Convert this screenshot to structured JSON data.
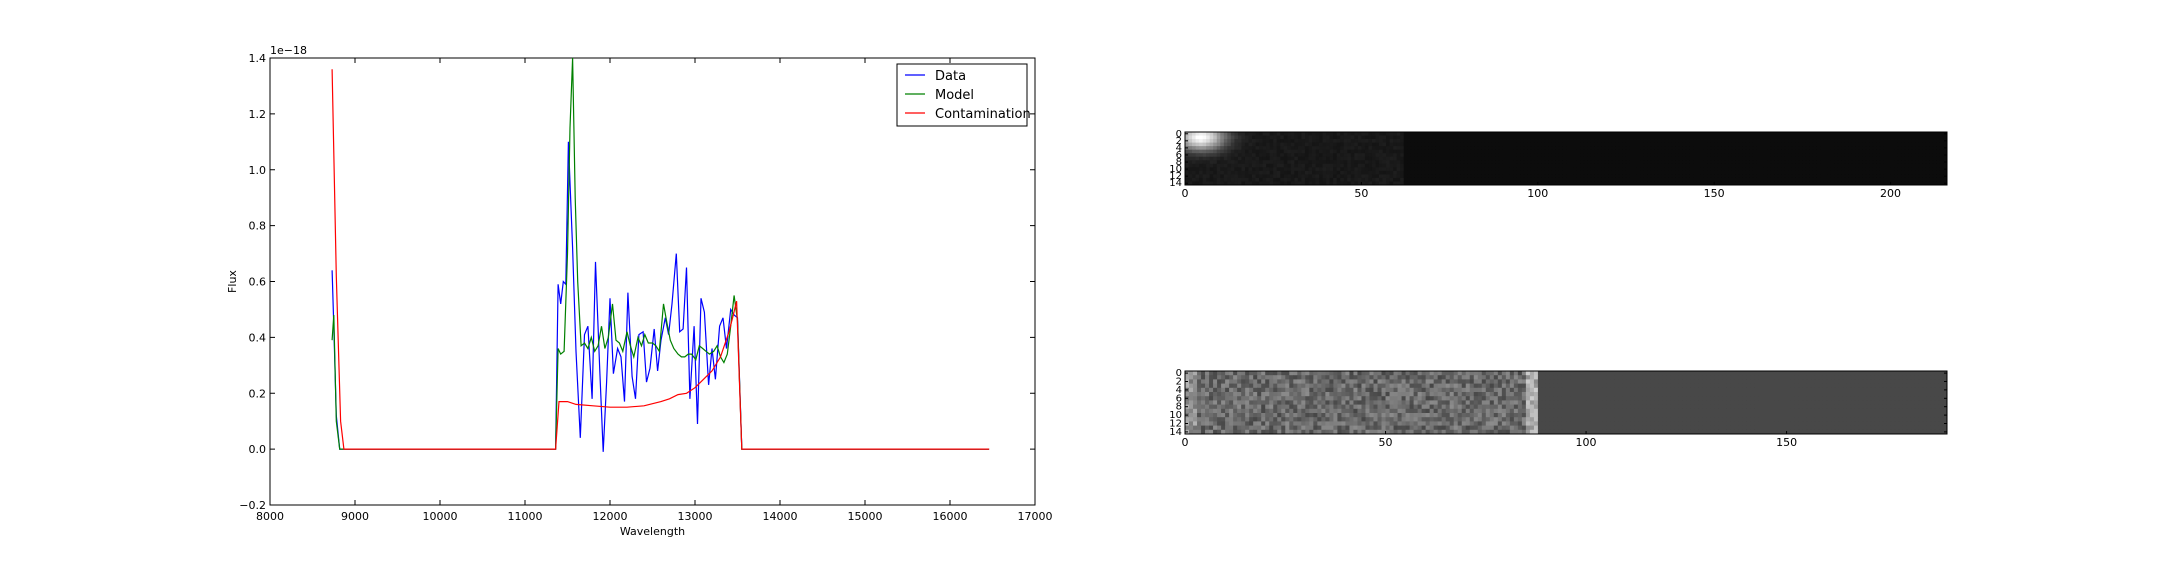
{
  "chart_data": [
    {
      "type": "line",
      "xlabel": "Wavelength",
      "ylabel": "Flux",
      "offset_text": "1e−18",
      "xlim": [
        8000,
        17000
      ],
      "ylim": [
        -0.2,
        1.4
      ],
      "xticks": [
        8000,
        9000,
        10000,
        11000,
        12000,
        13000,
        14000,
        15000,
        16000,
        17000
      ],
      "yticks": [
        -0.2,
        0.0,
        0.2,
        0.4,
        0.6,
        0.8,
        1.0,
        1.2,
        1.4
      ],
      "ytick_labels": [
        "−0.2",
        "0.0",
        "0.2",
        "0.4",
        "0.6",
        "0.8",
        "1.0",
        "1.2",
        "1.4"
      ],
      "legend_position": "upper right",
      "series": [
        {
          "name": "Data",
          "color": "#0000ff",
          "x": [
            8730,
            8750,
            8780,
            8820,
            8860,
            9000,
            10000,
            11000,
            11360,
            11390,
            11420,
            11450,
            11480,
            11510,
            11560,
            11600,
            11650,
            11700,
            11740,
            11790,
            11830,
            11880,
            11920,
            11960,
            12000,
            12040,
            12090,
            12130,
            12170,
            12210,
            12260,
            12300,
            12340,
            12390,
            12430,
            12470,
            12520,
            12560,
            12600,
            12650,
            12690,
            12730,
            12780,
            12820,
            12860,
            12900,
            12940,
            12990,
            13030,
            13070,
            13110,
            13160,
            13200,
            13240,
            13290,
            13330,
            13370,
            13420,
            13460,
            13500,
            13550,
            14000,
            15000,
            16000,
            16460
          ],
          "y": [
            0.64,
            0.44,
            0.12,
            0.0,
            0.0,
            0.0,
            0.0,
            0.0,
            0.0,
            0.59,
            0.52,
            0.6,
            0.59,
            1.1,
            0.72,
            0.35,
            0.04,
            0.41,
            0.44,
            0.18,
            0.67,
            0.28,
            -0.01,
            0.24,
            0.54,
            0.27,
            0.36,
            0.33,
            0.17,
            0.56,
            0.26,
            0.18,
            0.41,
            0.42,
            0.24,
            0.29,
            0.43,
            0.28,
            0.39,
            0.47,
            0.41,
            0.52,
            0.7,
            0.42,
            0.43,
            0.65,
            0.18,
            0.44,
            0.09,
            0.54,
            0.49,
            0.23,
            0.36,
            0.25,
            0.44,
            0.47,
            0.36,
            0.5,
            0.48,
            0.47,
            0.0,
            0.0,
            0.0,
            0.0,
            0.0
          ]
        },
        {
          "name": "Model",
          "color": "#008000",
          "x": [
            8730,
            8750,
            8780,
            8820,
            8860,
            9000,
            10000,
            11000,
            11360,
            11390,
            11420,
            11460,
            11500,
            11530,
            11560,
            11590,
            11620,
            11660,
            11700,
            11740,
            11780,
            11820,
            11860,
            11900,
            11940,
            11980,
            12030,
            12070,
            12110,
            12150,
            12200,
            12240,
            12280,
            12330,
            12370,
            12410,
            12450,
            12500,
            12540,
            12580,
            12630,
            12670,
            12710,
            12750,
            12800,
            12840,
            12880,
            12920,
            12960,
            13010,
            13050,
            13090,
            13130,
            13170,
            13220,
            13260,
            13300,
            13340,
            13380,
            13420,
            13460,
            13500,
            13550,
            14000,
            15000,
            16000,
            16460
          ],
          "y": [
            0.39,
            0.48,
            0.1,
            0.0,
            0.0,
            0.0,
            0.0,
            0.0,
            0.0,
            0.36,
            0.34,
            0.35,
            0.7,
            1.15,
            1.4,
            0.9,
            0.6,
            0.37,
            0.38,
            0.36,
            0.4,
            0.35,
            0.37,
            0.44,
            0.36,
            0.4,
            0.52,
            0.39,
            0.38,
            0.35,
            0.42,
            0.37,
            0.33,
            0.4,
            0.37,
            0.41,
            0.38,
            0.38,
            0.37,
            0.35,
            0.52,
            0.45,
            0.39,
            0.36,
            0.34,
            0.33,
            0.33,
            0.34,
            0.34,
            0.32,
            0.37,
            0.36,
            0.35,
            0.34,
            0.35,
            0.37,
            0.33,
            0.31,
            0.34,
            0.44,
            0.55,
            0.46,
            0.0,
            0.0,
            0.0,
            0.0,
            0.0
          ]
        },
        {
          "name": "Contamination",
          "color": "#ff0000",
          "x": [
            8730,
            8780,
            8830,
            8870,
            9000,
            10000,
            11000,
            11360,
            11400,
            11500,
            11600,
            11800,
            12000,
            12200,
            12400,
            12600,
            12700,
            12800,
            12900,
            13000,
            13100,
            13200,
            13300,
            13400,
            13450,
            13490,
            13550,
            14000,
            15000,
            16000,
            16460
          ],
          "y": [
            1.36,
            0.62,
            0.1,
            0.0,
            0.0,
            0.0,
            0.0,
            0.0,
            0.17,
            0.17,
            0.16,
            0.155,
            0.15,
            0.15,
            0.155,
            0.17,
            0.18,
            0.195,
            0.2,
            0.22,
            0.25,
            0.28,
            0.33,
            0.42,
            0.48,
            0.53,
            0.0,
            0.0,
            0.0,
            0.0,
            0.0
          ]
        }
      ]
    },
    {
      "type": "heatmap",
      "colormap": "gray",
      "xlim": [
        0,
        216
      ],
      "ylim": [
        15,
        0
      ],
      "xticks": [
        0,
        50,
        100,
        150,
        200
      ],
      "yticks": [
        0,
        2,
        4,
        6,
        8,
        10,
        12,
        14
      ],
      "ytick_labels": [
        "0",
        "2",
        "4",
        "6",
        "8",
        "10",
        "12",
        "14"
      ],
      "description_level": "mostly near-black with a bright blob at top-left and faint glow until column ~62"
    },
    {
      "type": "heatmap",
      "colormap": "gray",
      "xlim": [
        0,
        190
      ],
      "ylim": [
        15,
        0
      ],
      "xticks": [
        0,
        50,
        100,
        150
      ],
      "yticks": [
        0,
        2,
        4,
        6,
        8,
        10,
        12,
        14
      ],
      "ytick_labels": [
        "0",
        "2",
        "4",
        "6",
        "8",
        "10",
        "12",
        "14"
      ],
      "description_level": "noisy mottled texture up to column ~88, uniform dark gray beyond"
    }
  ]
}
